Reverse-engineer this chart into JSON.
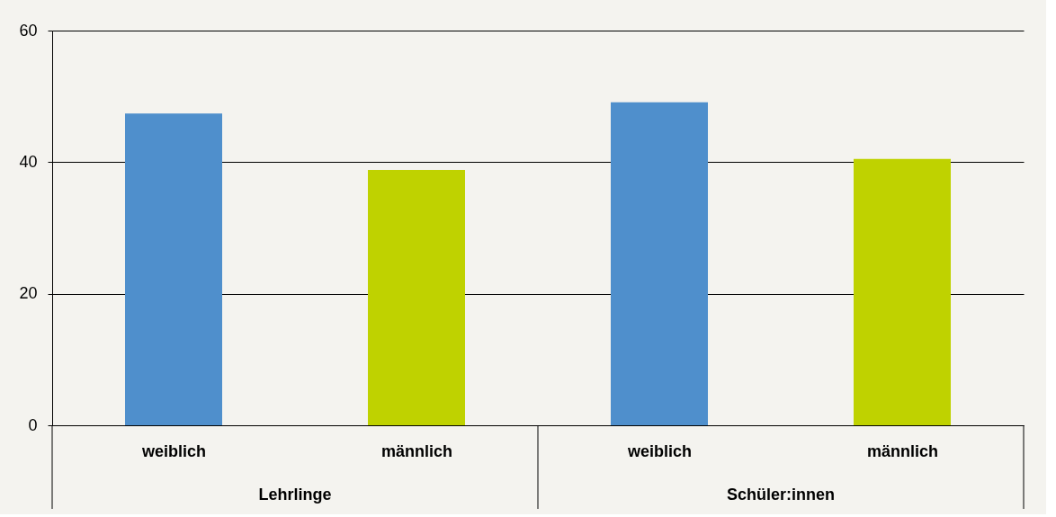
{
  "chart_data": {
    "type": "bar",
    "categories": [
      "weiblich",
      "männlich",
      "weiblich",
      "männlich"
    ],
    "values": [
      47.4,
      38.8,
      49.1,
      40.5
    ],
    "colors": [
      "#4f8fcc",
      "#bfd200",
      "#4f8fcc",
      "#bfd200"
    ],
    "ylim": [
      0,
      60
    ],
    "yticks": [
      0,
      20,
      40,
      60
    ],
    "grid": "y",
    "annotations": [
      "Lehrlinge",
      "Schüler:innen"
    ]
  }
}
